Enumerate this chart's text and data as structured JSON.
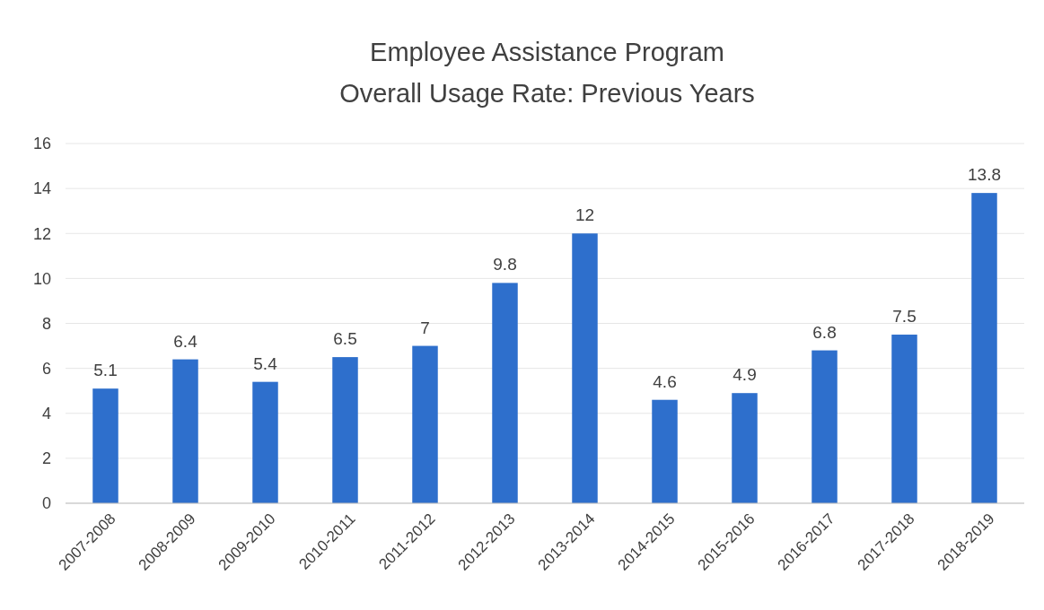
{
  "chart_data": {
    "type": "bar",
    "title": "Employee Assistance Program\nOverall Usage Rate: Previous Years",
    "categories": [
      "2007-2008",
      "2008-2009",
      "2009-2010",
      "2010-2011",
      "2011-2012",
      "2012-2013",
      "2013-2014",
      "2014-2015",
      "2015-2016",
      "2016-2017",
      "2017-2018",
      "2018-2019"
    ],
    "values": [
      5.1,
      6.4,
      5.4,
      6.5,
      7,
      9.8,
      12,
      4.6,
      4.9,
      6.8,
      7.5,
      13.8
    ],
    "color": "#2e6fcc",
    "ylim": [
      0,
      16
    ],
    "yticks": [
      0,
      2,
      4,
      6,
      8,
      10,
      12,
      14,
      16
    ],
    "grid": "y",
    "data_labels": true
  }
}
